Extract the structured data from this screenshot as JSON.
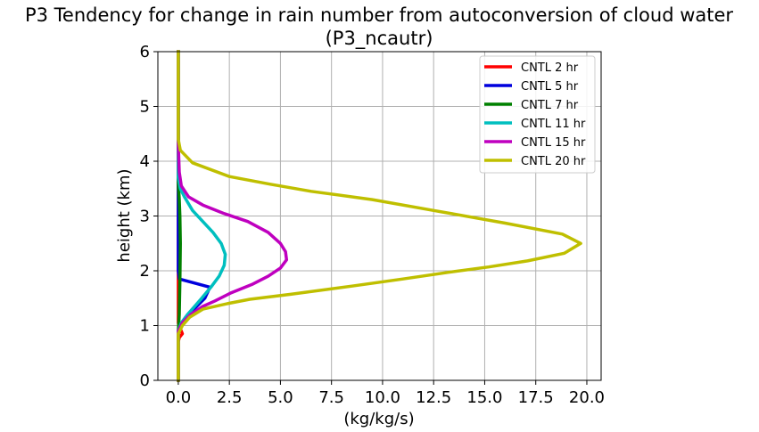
{
  "chart_data": {
    "type": "line",
    "title_line1": "P3 Tendency for change in rain number from autoconversion of cloud water",
    "title_line2": "(P3_ncautr)",
    "xlabel": "(kg/kg/s)",
    "ylabel": "height (km)",
    "xlim": [
      -1.0,
      20.7
    ],
    "ylim": [
      0,
      6
    ],
    "xticks": [
      0.0,
      2.5,
      5.0,
      7.5,
      10.0,
      12.5,
      15.0,
      17.5,
      20.0
    ],
    "xtick_labels": [
      "0.0",
      "2.5",
      "5.0",
      "7.5",
      "10.0",
      "12.5",
      "15.0",
      "17.5",
      "20.0"
    ],
    "yticks": [
      0,
      1,
      2,
      3,
      4,
      5,
      6
    ],
    "ytick_labels": [
      "0",
      "1",
      "2",
      "3",
      "4",
      "5",
      "6"
    ],
    "grid": true,
    "legend_position": "top-right",
    "series": [
      {
        "name": "CNTL 2 hr",
        "color": "#ff0000",
        "points": [
          [
            0,
            0
          ],
          [
            0,
            0.7
          ],
          [
            0.05,
            0.78
          ],
          [
            0.2,
            0.85
          ],
          [
            0.15,
            0.9
          ],
          [
            0.05,
            0.95
          ],
          [
            0,
            1.05
          ],
          [
            0,
            6
          ]
        ]
      },
      {
        "name": "CNTL 5 hr",
        "color": "#0000dd",
        "points": [
          [
            0,
            0
          ],
          [
            0,
            0.9
          ],
          [
            0.2,
            1.05
          ],
          [
            0.5,
            1.2
          ],
          [
            0.9,
            1.35
          ],
          [
            1.3,
            1.5
          ],
          [
            1.55,
            1.7
          ],
          [
            0.05,
            1.85
          ],
          [
            0,
            2.0
          ],
          [
            0,
            6
          ]
        ]
      },
      {
        "name": "CNTL 7 hr",
        "color": "#008000",
        "points": [
          [
            0,
            0
          ],
          [
            0,
            0.9
          ],
          [
            0.05,
            1.2
          ],
          [
            0.08,
            1.8
          ],
          [
            0.1,
            2.5
          ],
          [
            0.08,
            3.0
          ],
          [
            0.05,
            3.3
          ],
          [
            0,
            3.6
          ],
          [
            0,
            6
          ]
        ]
      },
      {
        "name": "CNTL 11 hr",
        "color": "#00bfbf",
        "points": [
          [
            0,
            0
          ],
          [
            0,
            0.9
          ],
          [
            0.15,
            1.05
          ],
          [
            0.45,
            1.2
          ],
          [
            0.8,
            1.35
          ],
          [
            1.15,
            1.5
          ],
          [
            1.6,
            1.7
          ],
          [
            2.0,
            1.9
          ],
          [
            2.25,
            2.1
          ],
          [
            2.3,
            2.3
          ],
          [
            2.1,
            2.5
          ],
          [
            1.7,
            2.7
          ],
          [
            1.2,
            2.9
          ],
          [
            0.7,
            3.1
          ],
          [
            0.3,
            3.35
          ],
          [
            0.1,
            3.5
          ],
          [
            0,
            3.7
          ],
          [
            0,
            6
          ]
        ]
      },
      {
        "name": "CNTL 15 hr",
        "color": "#bf00bf",
        "points": [
          [
            0,
            0
          ],
          [
            0,
            0.9
          ],
          [
            0.2,
            1.05
          ],
          [
            0.6,
            1.2
          ],
          [
            1.2,
            1.35
          ],
          [
            1.8,
            1.45
          ],
          [
            2.6,
            1.6
          ],
          [
            3.6,
            1.75
          ],
          [
            4.4,
            1.9
          ],
          [
            5.0,
            2.05
          ],
          [
            5.3,
            2.2
          ],
          [
            5.25,
            2.35
          ],
          [
            5.0,
            2.5
          ],
          [
            4.4,
            2.7
          ],
          [
            3.4,
            2.9
          ],
          [
            2.2,
            3.05
          ],
          [
            1.2,
            3.2
          ],
          [
            0.5,
            3.35
          ],
          [
            0.15,
            3.55
          ],
          [
            0.05,
            3.8
          ],
          [
            0,
            4.3
          ],
          [
            0,
            6
          ]
        ]
      },
      {
        "name": "CNTL 20 hr",
        "color": "#bfbf00",
        "points": [
          [
            0,
            0
          ],
          [
            0,
            0.85
          ],
          [
            0.2,
            1.0
          ],
          [
            0.55,
            1.15
          ],
          [
            1.2,
            1.3
          ],
          [
            2.4,
            1.4
          ],
          [
            3.5,
            1.48
          ],
          [
            5.5,
            1.57
          ],
          [
            8.5,
            1.72
          ],
          [
            11,
            1.85
          ],
          [
            13.2,
            1.97
          ],
          [
            15.2,
            2.07
          ],
          [
            17.1,
            2.18
          ],
          [
            18.9,
            2.32
          ],
          [
            19.7,
            2.5
          ],
          [
            18.8,
            2.67
          ],
          [
            16.0,
            2.87
          ],
          [
            12.5,
            3.1
          ],
          [
            9.5,
            3.3
          ],
          [
            6.5,
            3.45
          ],
          [
            4.5,
            3.58
          ],
          [
            2.5,
            3.72
          ],
          [
            0.7,
            3.97
          ],
          [
            0.1,
            4.2
          ],
          [
            0,
            4.4
          ],
          [
            0,
            6
          ]
        ]
      }
    ]
  }
}
